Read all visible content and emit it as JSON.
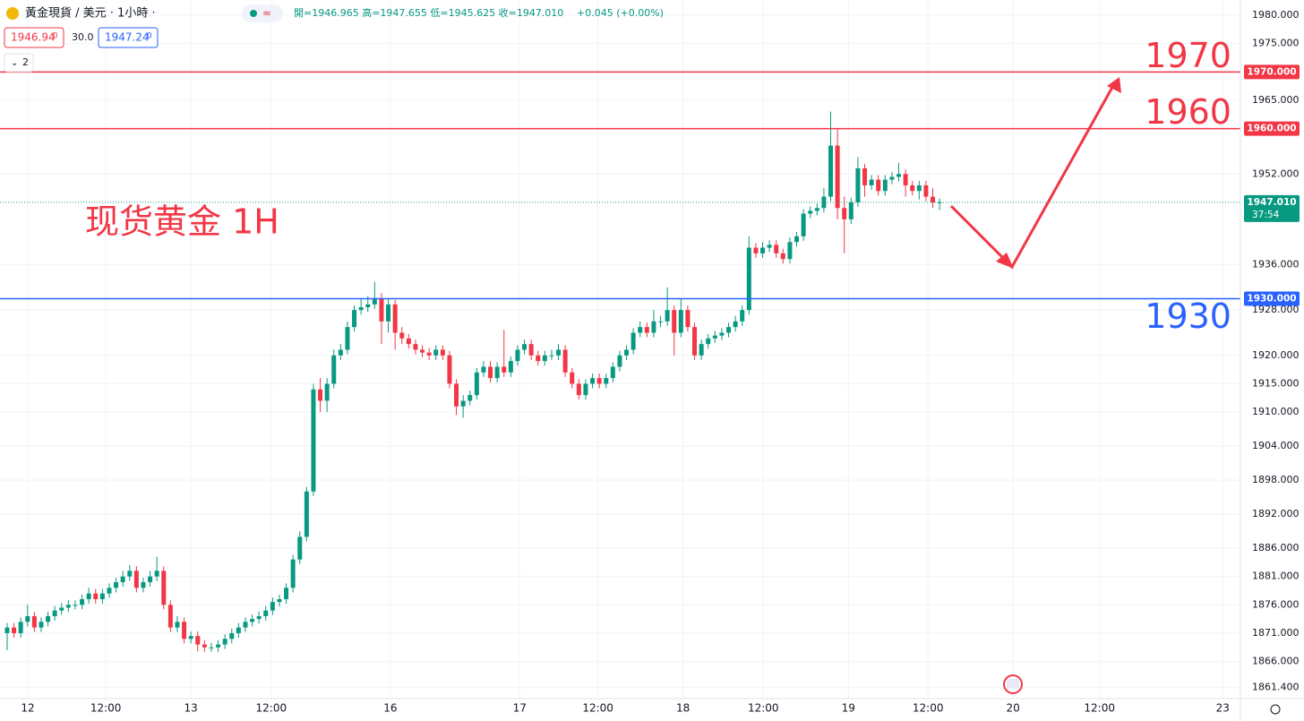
{
  "chart_data": {
    "type": "candlestick",
    "title": "黃金現貨 / 美元 · 1小時 ·",
    "ohlc_header": "開=1946.965 高=1947.655 低=1945.625 收=1947.010",
    "change": "+0.045 (+0.00%)",
    "sell_price": "1946.94",
    "sell_price_sup": "0",
    "spread": "30.0",
    "buy_price": "1947.24",
    "buy_price_sup": "0",
    "pane_count": "2",
    "annotation": "现货黄金 1H",
    "up_color": "#089981",
    "down_color": "#f23645",
    "grid": true,
    "open": [
      1871,
      1872,
      1871,
      1873,
      1874,
      1872,
      1873,
      1874,
      1875,
      1875.5,
      1876,
      1876,
      1877,
      1878,
      1877,
      1878,
      1879,
      1880,
      1881,
      1882,
      1879,
      1880,
      1881,
      1882,
      1876,
      1872,
      1873,
      1870,
      1870.5,
      1869,
      1868.5,
      1868.5,
      1869,
      1870,
      1871,
      1872,
      1873,
      1873.5,
      1874,
      1875,
      1876.5,
      1877,
      1879,
      1884,
      1888,
      1896,
      1914,
      1912,
      1915,
      1920,
      1921,
      1925,
      1928,
      1928.5,
      1929,
      1930,
      1926,
      1929,
      1924,
      1923,
      1922,
      1921,
      1920.5,
      1920,
      1921,
      1920,
      1915,
      1911,
      1912,
      1913,
      1917,
      1918,
      1916,
      1918,
      1917,
      1919,
      1921,
      1922,
      1920,
      1919,
      1920,
      1920,
      1921,
      1917,
      1915,
      1913,
      1915,
      1916,
      1915,
      1916,
      1918,
      1920,
      1921,
      1924,
      1925,
      1924,
      1926,
      1926,
      1928,
      1924,
      1928,
      1925,
      1920,
      1922,
      1923,
      1923.5,
      1924,
      1925,
      1926,
      1928,
      1939,
      1938,
      1939,
      1939.5,
      1938,
      1937,
      1940,
      1941,
      1945,
      1945.5,
      1946,
      1948,
      1957,
      1946,
      1944,
      1947,
      1953,
      1950,
      1951,
      1949,
      1951,
      1951.5,
      1952,
      1950,
      1949,
      1950,
      1948,
      1946.965
    ],
    "high": [
      1872.8,
      1872.8,
      1873.8,
      1876,
      1874.8,
      1873.8,
      1874.8,
      1875.8,
      1876.3,
      1876.8,
      1876.8,
      1877.8,
      1879,
      1878.8,
      1878.8,
      1879.8,
      1880.8,
      1882,
      1883,
      1882.8,
      1880.8,
      1882,
      1884.5,
      1882.8,
      1876.8,
      1874,
      1873.8,
      1871.3,
      1871.3,
      1869.8,
      1869.3,
      1869.8,
      1870.8,
      1871.8,
      1872.8,
      1873.8,
      1874.3,
      1874.8,
      1875.8,
      1877.3,
      1877.8,
      1879.8,
      1884.8,
      1889,
      1896.8,
      1915,
      1916,
      1916,
      1921,
      1922,
      1926,
      1928.8,
      1930,
      1930.5,
      1933,
      1931,
      1930,
      1929.8,
      1925,
      1923.8,
      1922.8,
      1921.8,
      1921.3,
      1921.8,
      1921.8,
      1920.8,
      1915.8,
      1913,
      1913.8,
      1917.8,
      1919,
      1919,
      1918.8,
      1924.5,
      1919.8,
      1921.8,
      1922.8,
      1922.8,
      1920.8,
      1920.8,
      1921,
      1922,
      1921.8,
      1917.8,
      1915.8,
      1915.8,
      1916.8,
      1916.8,
      1916.8,
      1918.8,
      1920.8,
      1921.8,
      1924.8,
      1926,
      1925.8,
      1928,
      1927,
      1932,
      1928.8,
      1930,
      1928.8,
      1925.8,
      1922.8,
      1923.8,
      1924.3,
      1924.8,
      1925.8,
      1927,
      1928.8,
      1941,
      1939.8,
      1940,
      1940.3,
      1940.3,
      1938.8,
      1940.8,
      1941.8,
      1945.8,
      1946.3,
      1946.8,
      1949.5,
      1963,
      1960,
      1948,
      1947.8,
      1955,
      1953.8,
      1951.8,
      1951.8,
      1951.8,
      1952.3,
      1954,
      1952.8,
      1950.8,
      1950.8,
      1950.8,
      1949.5,
      1947.655
    ],
    "low": [
      1868,
      1870.2,
      1870.2,
      1872.2,
      1871.2,
      1871.2,
      1872.2,
      1873.2,
      1874.2,
      1874.7,
      1875.2,
      1875.2,
      1876.2,
      1876.2,
      1876.2,
      1877.2,
      1878.2,
      1879.2,
      1880.2,
      1878.2,
      1878.2,
      1879.2,
      1880.2,
      1875.2,
      1871.2,
      1871.2,
      1869.2,
      1869.2,
      1867.8,
      1867.7,
      1867.7,
      1867.7,
      1868.2,
      1869.2,
      1870.2,
      1871.2,
      1872.2,
      1872.7,
      1873.2,
      1874.2,
      1875.7,
      1876.2,
      1878.2,
      1883.2,
      1887.2,
      1895.2,
      1910,
      1910,
      1914.2,
      1919.2,
      1920.2,
      1924.2,
      1927.2,
      1927.7,
      1928.2,
      1922,
      1924,
      1921,
      1922,
      1921.2,
      1920.2,
      1919.7,
      1919.2,
      1919.2,
      1919.2,
      1914.2,
      1909.5,
      1909,
      1911.2,
      1912.2,
      1916.2,
      1915.2,
      1915.2,
      1916.2,
      1916.2,
      1918.2,
      1920.2,
      1919.2,
      1918.2,
      1918.2,
      1919.2,
      1919.2,
      1916.2,
      1914.2,
      1912.2,
      1912.2,
      1914.2,
      1914.2,
      1914.2,
      1915.2,
      1917.2,
      1919.2,
      1920.2,
      1923.2,
      1923.2,
      1923.2,
      1925,
      1925.2,
      1920,
      1923.2,
      1924.2,
      1919.2,
      1919.2,
      1921.2,
      1922.2,
      1922.7,
      1923.2,
      1924.2,
      1925.2,
      1927.2,
      1937.2,
      1937.2,
      1938.2,
      1937.2,
      1936.2,
      1936.2,
      1939.2,
      1940.2,
      1944.2,
      1944.7,
      1945.2,
      1947.2,
      1944,
      1938,
      1943.2,
      1946.2,
      1948,
      1949.2,
      1948.2,
      1948.2,
      1950.2,
      1950.7,
      1948,
      1948.2,
      1947.5,
      1947.2,
      1946,
      1945.625
    ],
    "close": [
      1872,
      1871,
      1873,
      1874,
      1872,
      1873,
      1874,
      1875,
      1875.5,
      1876,
      1876,
      1877,
      1878,
      1877,
      1878,
      1879,
      1880,
      1881,
      1882,
      1879,
      1880,
      1881,
      1882,
      1876,
      1872,
      1873,
      1870,
      1870.5,
      1869,
      1868.5,
      1868.5,
      1869,
      1870,
      1871,
      1872,
      1873,
      1873.5,
      1874,
      1875,
      1876.5,
      1877,
      1879,
      1884,
      1888,
      1896,
      1914,
      1912,
      1915,
      1920,
      1921,
      1925,
      1928,
      1928.5,
      1929,
      1930,
      1926,
      1929,
      1924,
      1923,
      1922,
      1921,
      1920.5,
      1920,
      1921,
      1920,
      1915,
      1911,
      1912,
      1913,
      1917,
      1918,
      1916,
      1918,
      1917,
      1919,
      1921,
      1922,
      1920,
      1919,
      1920,
      1920,
      1921,
      1917,
      1915,
      1913,
      1915,
      1916,
      1915,
      1916,
      1918,
      1920,
      1921,
      1924,
      1925,
      1924,
      1926,
      1926,
      1928,
      1924,
      1928,
      1925,
      1920,
      1922,
      1923,
      1923.5,
      1924,
      1925,
      1926,
      1928,
      1939,
      1938,
      1939,
      1939.5,
      1938,
      1937,
      1940,
      1941,
      1945,
      1945.5,
      1946,
      1948,
      1957,
      1946,
      1944,
      1947,
      1953,
      1950,
      1951,
      1949,
      1951,
      1951.5,
      1952,
      1950,
      1949,
      1950,
      1948,
      1946.965,
      1947.01
    ],
    "xlim": [
      -1.05,
      181.2
    ],
    "xticks": [
      {
        "value": 3.03,
        "label": "12"
      },
      {
        "value": 14.5,
        "label": "12:00"
      },
      {
        "value": 27,
        "label": "13"
      },
      {
        "value": 38.8,
        "label": "12:00"
      },
      {
        "value": 56.3,
        "label": "16"
      },
      {
        "value": 75.3,
        "label": "17"
      },
      {
        "value": 86.8,
        "label": "12:00"
      },
      {
        "value": 99.3,
        "label": "18"
      },
      {
        "value": 111.1,
        "label": "12:00"
      },
      {
        "value": 123.6,
        "label": "19"
      },
      {
        "value": 135.3,
        "label": "12:00"
      },
      {
        "value": 147.8,
        "label": "20"
      },
      {
        "value": 160.5,
        "label": "12:00"
      },
      {
        "value": 178.6,
        "label": "23"
      }
    ],
    "ylim": [
      1859.46,
      1982.69
    ],
    "yticks": [
      {
        "value": 1980,
        "label": "1980.000"
      },
      {
        "value": 1975,
        "label": "1975.000"
      },
      {
        "value": 1965,
        "label": "1965.000"
      },
      {
        "value": 1952,
        "label": "1952.000"
      },
      {
        "value": 1936,
        "label": "1936.000"
      },
      {
        "value": 1928,
        "label": "1928.000"
      },
      {
        "value": 1920,
        "label": "1920.000"
      },
      {
        "value": 1915,
        "label": "1915.000"
      },
      {
        "value": 1910,
        "label": "1910.000"
      },
      {
        "value": 1904,
        "label": "1904.000"
      },
      {
        "value": 1898,
        "label": "1898.000"
      },
      {
        "value": 1892,
        "label": "1892.000"
      },
      {
        "value": 1886,
        "label": "1886.000"
      },
      {
        "value": 1881,
        "label": "1881.000"
      },
      {
        "value": 1876,
        "label": "1876.000"
      },
      {
        "value": 1871,
        "label": "1871.000"
      },
      {
        "value": 1866,
        "label": "1866.000"
      },
      {
        "value": 1861.4,
        "label": "1861.400"
      }
    ],
    "hlines": [
      {
        "value": 1970,
        "label": "1970.000",
        "color": "#f23645"
      },
      {
        "value": 1960,
        "label": "1960.000",
        "color": "#f23645"
      },
      {
        "value": 1930,
        "label": "1930.000",
        "color": "#2962ff"
      }
    ],
    "last_price": {
      "value": 1947.01,
      "label": "1947.010",
      "countdown": "37:54",
      "color": "#089981"
    }
  }
}
